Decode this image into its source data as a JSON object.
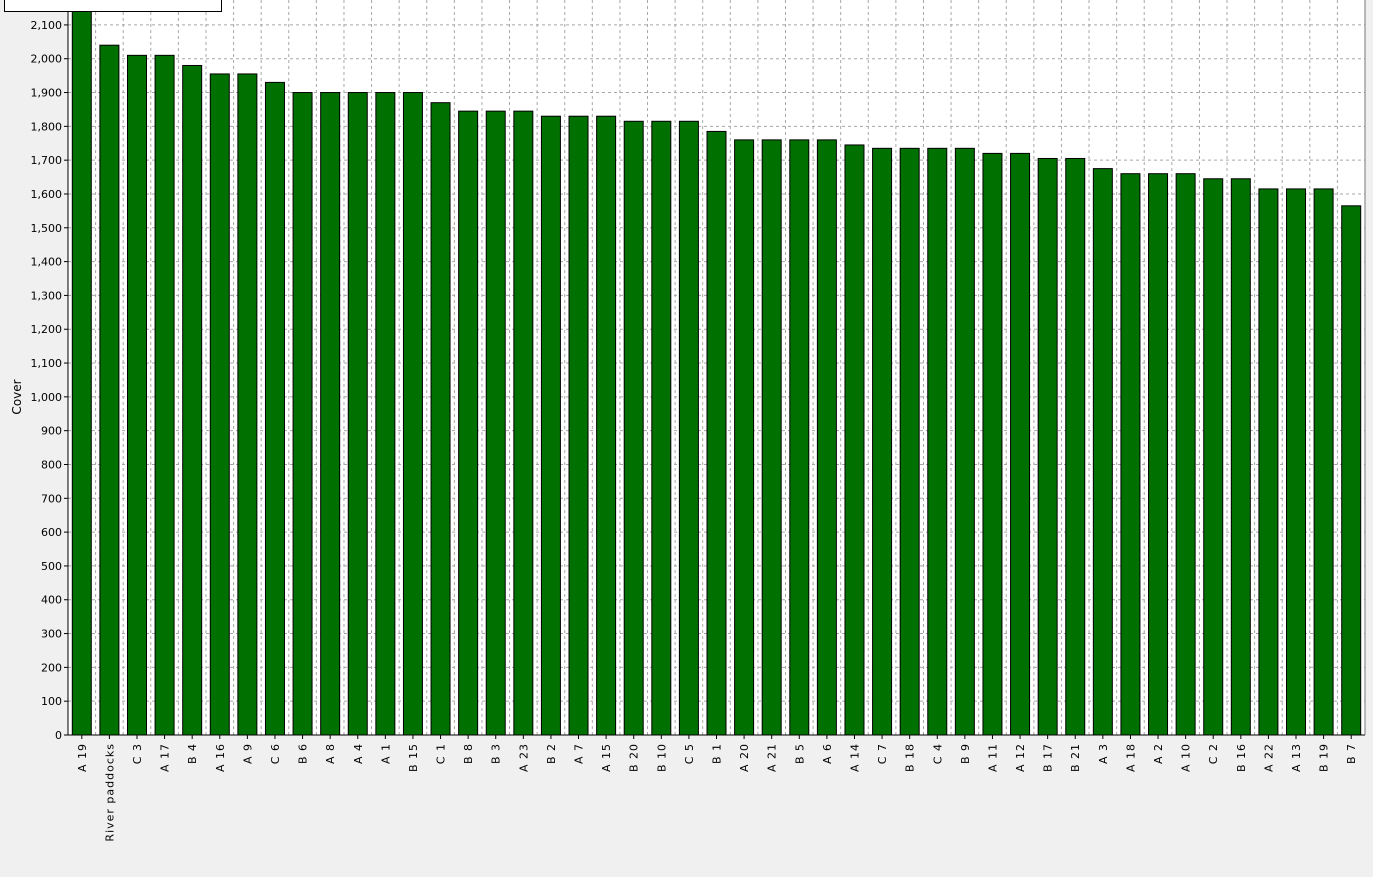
{
  "chart_data": {
    "type": "bar",
    "title": "",
    "xlabel": "",
    "ylabel": "Cover",
    "ylim": [
      0,
      2150
    ],
    "ytick_step": 100,
    "grid": true,
    "bar_color": "#007000",
    "categories": [
      "A 19",
      "River paddocks",
      "C 3",
      "A 17",
      "B 4",
      "A 16",
      "A 9",
      "C 6",
      "B 6",
      "A 8",
      "A 4",
      "A 1",
      "B 15",
      "C 1",
      "B 8",
      "B 3",
      "A 23",
      "B 2",
      "A 7",
      "A 15",
      "B 20",
      "B 10",
      "C 5",
      "B 1",
      "A 20",
      "A 21",
      "B 5",
      "A 6",
      "A 14",
      "C 7",
      "B 18",
      "C 4",
      "B 9",
      "A 11",
      "A 12",
      "B 17",
      "B 21",
      "A 3",
      "A 18",
      "A 2",
      "A 10",
      "C 2",
      "B 16",
      "A 22",
      "A 13",
      "B 19",
      "B 7"
    ],
    "values": [
      2150,
      2040,
      2010,
      2010,
      1980,
      1955,
      1955,
      1930,
      1900,
      1900,
      1900,
      1900,
      1900,
      1870,
      1845,
      1845,
      1845,
      1830,
      1830,
      1830,
      1815,
      1815,
      1815,
      1785,
      1760,
      1760,
      1760,
      1760,
      1745,
      1735,
      1735,
      1735,
      1735,
      1720,
      1720,
      1705,
      1705,
      1675,
      1660,
      1660,
      1660,
      1645,
      1645,
      1615,
      1615,
      1615,
      1565
    ]
  }
}
